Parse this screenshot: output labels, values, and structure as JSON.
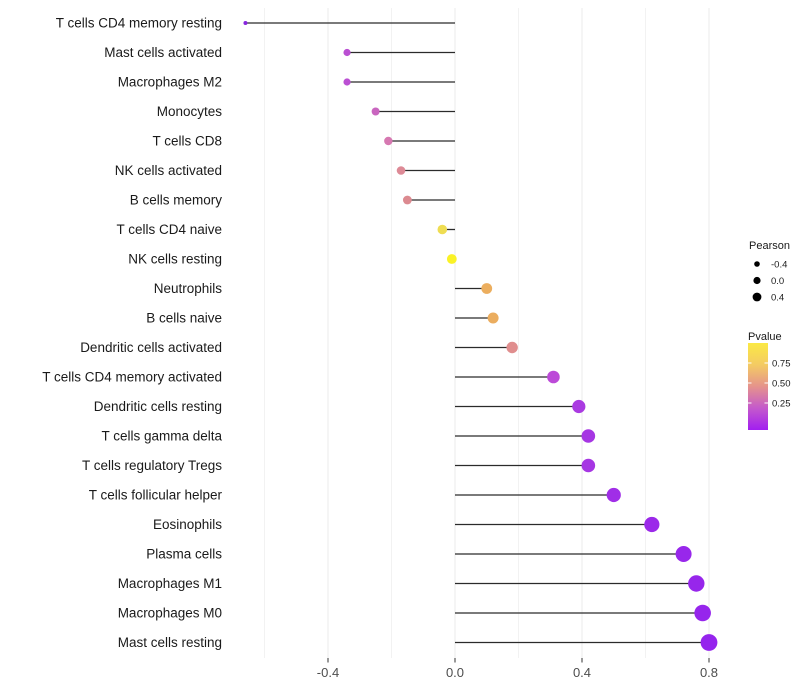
{
  "chart_data": {
    "type": "lollipop",
    "title": "",
    "xlabel": "",
    "ylabel": "",
    "xlim": [
      -0.687,
      0.841
    ],
    "x_major_ticks": [
      -0.4,
      0.0,
      0.4,
      0.8
    ],
    "x_major_tick_labels": [
      "-0.4",
      "0.0",
      "0.4",
      "0.8"
    ],
    "x_minor_ticks": [
      -0.6,
      -0.2,
      0.2,
      0.6
    ],
    "grid": "vertical-only",
    "rows": [
      {
        "label": "T cells CD4 memory resting",
        "pearson": -0.66,
        "color": "#8826DE",
        "radius": 2.0
      },
      {
        "label": "Mast cells activated",
        "pearson": -0.34,
        "color": "#BA4FD2",
        "radius": 3.6
      },
      {
        "label": "Macrophages M2",
        "pearson": -0.34,
        "color": "#BB50D3",
        "radius": 3.6
      },
      {
        "label": "Monocytes",
        "pearson": -0.25,
        "color": "#C965BF",
        "radius": 4.0
      },
      {
        "label": "T cells CD8",
        "pearson": -0.21,
        "color": "#D678B1",
        "radius": 4.2
      },
      {
        "label": "NK cells activated",
        "pearson": -0.17,
        "color": "#DD8A96",
        "radius": 4.3
      },
      {
        "label": "B cells memory",
        "pearson": -0.15,
        "color": "#DC8A90",
        "radius": 4.4
      },
      {
        "label": "T cells CD4 naive",
        "pearson": -0.04,
        "color": "#EFDD52",
        "radius": 4.8
      },
      {
        "label": "NK cells resting",
        "pearson": -0.01,
        "color": "#FAF226",
        "radius": 4.9
      },
      {
        "label": "Neutrophils",
        "pearson": 0.1,
        "color": "#ECAE5E",
        "radius": 5.4
      },
      {
        "label": "B cells naive",
        "pearson": 0.12,
        "color": "#EBAD5F",
        "radius": 5.5
      },
      {
        "label": "Dendritic cells activated",
        "pearson": 0.18,
        "color": "#E08E8E",
        "radius": 5.7
      },
      {
        "label": "T cells CD4 memory activated",
        "pearson": 0.31,
        "color": "#BC4AD8",
        "radius": 6.3
      },
      {
        "label": "Dendritic cells resting",
        "pearson": 0.39,
        "color": "#AA3BE1",
        "radius": 6.6
      },
      {
        "label": "T cells gamma delta",
        "pearson": 0.42,
        "color": "#A636E3",
        "radius": 6.8
      },
      {
        "label": "T cells regulatory  Tregs",
        "pearson": 0.42,
        "color": "#A636E3",
        "radius": 6.8
      },
      {
        "label": "T cells follicular helper",
        "pearson": 0.5,
        "color": "#A02EE7",
        "radius": 7.1
      },
      {
        "label": "Eosinophils",
        "pearson": 0.62,
        "color": "#9B29E9",
        "radius": 7.6
      },
      {
        "label": "Plasma cells",
        "pearson": 0.72,
        "color": "#9827EB",
        "radius": 8.0
      },
      {
        "label": "Macrophages M1",
        "pearson": 0.76,
        "color": "#9726EB",
        "radius": 8.2
      },
      {
        "label": "Macrophages M0",
        "pearson": 0.78,
        "color": "#9625EC",
        "radius": 8.3
      },
      {
        "label": "Mast cells resting",
        "pearson": 0.8,
        "color": "#9524ED",
        "radius": 8.4
      }
    ],
    "legend": {
      "size_legend": {
        "title": "Pearson",
        "items": [
          {
            "label": "-0.4",
            "radius": 2.8
          },
          {
            "label": "0.0",
            "radius": 3.6
          },
          {
            "label": "0.4",
            "radius": 4.4
          }
        ]
      },
      "color_legend": {
        "title": "Pvalue",
        "tick_labels": [
          "0.75",
          "0.50",
          "0.25"
        ],
        "gradient_top_to_bottom": [
          "#FBE944",
          "#F4CB63",
          "#E5938C",
          "#C459CC",
          "#A21EF0"
        ]
      }
    }
  },
  "style_colors": {
    "stem": "#2b2b2b",
    "grid_major": "#ebebeb",
    "grid_minor": "#f2f2f2",
    "axis_tick": "#333333",
    "axis_text": "#4d4d4d",
    "label_text": "#1a1a1a",
    "legend_dot": "#000000",
    "background": "#ffffff"
  }
}
